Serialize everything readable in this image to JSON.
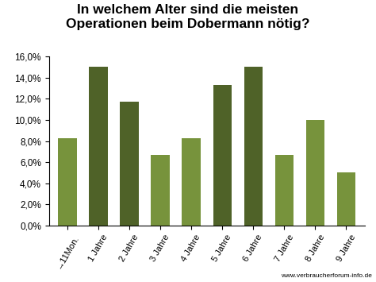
{
  "chart_data": {
    "type": "bar",
    "title": "In welchem Alter sind die meisten\nOperationen beim Dobermann nötig?",
    "categories": [
      "→11Mon.",
      "1 Jahre",
      "2 Jahre",
      "3 Jahre",
      "4 Jahre",
      "5 Jahre",
      "6 Jahre",
      "7 Jahre",
      "8 Jahre",
      "9 Jahre"
    ],
    "values": [
      8.3,
      15.0,
      11.7,
      6.7,
      8.3,
      13.3,
      15.0,
      6.7,
      10.0,
      5.0
    ],
    "colors": [
      "#77933c",
      "#4f6228",
      "#4f6228",
      "#77933c",
      "#77933c",
      "#4f6228",
      "#4f6228",
      "#77933c",
      "#77933c",
      "#77933c"
    ],
    "ylim": [
      0,
      16
    ],
    "yticks": [
      {
        "value": 0,
        "label": "0,0%"
      },
      {
        "value": 2,
        "label": "2,0%"
      },
      {
        "value": 4,
        "label": "4,0%"
      },
      {
        "value": 6,
        "label": "6,0%"
      },
      {
        "value": 8,
        "label": "8,0%"
      },
      {
        "value": 10,
        "label": "10,0%"
      },
      {
        "value": 12,
        "label": "12,0%"
      },
      {
        "value": 14,
        "label": "14,0%"
      },
      {
        "value": 16,
        "label": "16,0%"
      }
    ],
    "grid": false,
    "annotations": [
      "www.verbraucherforum-info.de"
    ]
  }
}
